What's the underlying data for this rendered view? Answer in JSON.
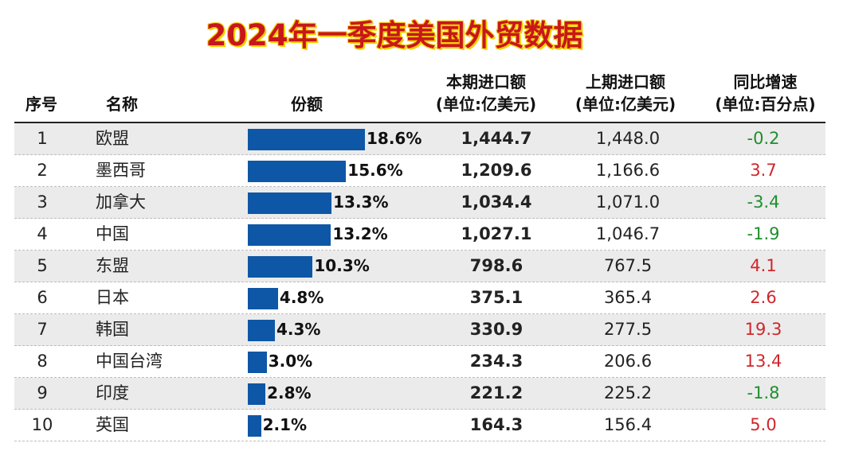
{
  "title": "2024年一季度美国外贸数据",
  "headers": {
    "rank": "序号",
    "name": "名称",
    "share": "份额",
    "current_import": "本期进口额",
    "current_import_unit": "(单位:亿美元)",
    "prev_import": "上期进口额",
    "prev_import_unit": "(单位:亿美元)",
    "yoy": "同比增速",
    "yoy_unit": "(单位:百分点)"
  },
  "colors": {
    "bar": "#0e57a6",
    "negative": "#1e8f2e",
    "positive": "#d0272a",
    "title": "#c8161d"
  },
  "chart_data": {
    "type": "table",
    "title": "2024年一季度美国外贸数据",
    "columns": [
      "序号",
      "名称",
      "份额",
      "本期进口额(单位:亿美元)",
      "上期进口额(单位:亿美元)",
      "同比增速(单位:百分点)"
    ],
    "rows": [
      {
        "rank": "1",
        "name": "欧盟",
        "share": 18.6,
        "share_label": "18.6%",
        "current": "1,444.7",
        "previous": "1,448.0",
        "yoy": "-0.2"
      },
      {
        "rank": "2",
        "name": "墨西哥",
        "share": 15.6,
        "share_label": "15.6%",
        "current": "1,209.6",
        "previous": "1,166.6",
        "yoy": "3.7"
      },
      {
        "rank": "3",
        "name": "加拿大",
        "share": 13.3,
        "share_label": "13.3%",
        "current": "1,034.4",
        "previous": "1,071.0",
        "yoy": "-3.4"
      },
      {
        "rank": "4",
        "name": "中国",
        "share": 13.2,
        "share_label": "13.2%",
        "current": "1,027.1",
        "previous": "1,046.7",
        "yoy": "-1.9"
      },
      {
        "rank": "5",
        "name": "东盟",
        "share": 10.3,
        "share_label": "10.3%",
        "current": "798.6",
        "previous": "767.5",
        "yoy": "4.1"
      },
      {
        "rank": "6",
        "name": "日本",
        "share": 4.8,
        "share_label": "4.8%",
        "current": "375.1",
        "previous": "365.4",
        "yoy": "2.6"
      },
      {
        "rank": "7",
        "name": "韩国",
        "share": 4.3,
        "share_label": "4.3%",
        "current": "330.9",
        "previous": "277.5",
        "yoy": "19.3"
      },
      {
        "rank": "8",
        "name": "中国台湾",
        "share": 3.0,
        "share_label": "3.0%",
        "current": "234.3",
        "previous": "206.6",
        "yoy": "13.4"
      },
      {
        "rank": "9",
        "name": "印度",
        "share": 2.8,
        "share_label": "2.8%",
        "current": "221.2",
        "previous": "225.2",
        "yoy": "-1.8"
      },
      {
        "rank": "10",
        "name": "英国",
        "share": 2.1,
        "share_label": "2.1%",
        "current": "164.3",
        "previous": "156.4",
        "yoy": "5.0"
      }
    ]
  }
}
